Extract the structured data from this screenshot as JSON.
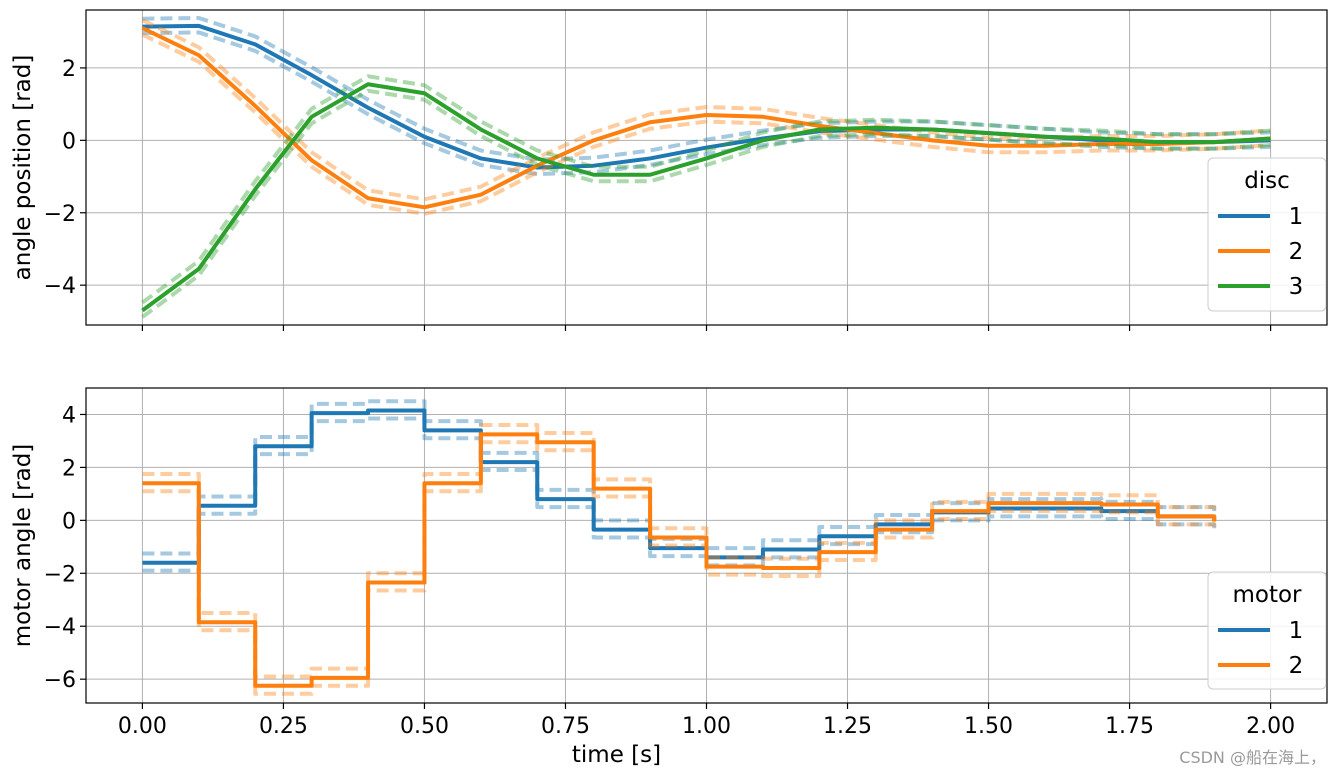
{
  "watermark": "CSDN @船在海上，",
  "colors": {
    "c1": "#1f77b4",
    "c2": "#ff7f0e",
    "c3": "#2ca02c",
    "grid": "#b0b0b0"
  },
  "chart_data": [
    {
      "type": "line",
      "ylabel": "angle position [rad]",
      "xlabel": "",
      "xlim": [
        -0.1,
        2.1
      ],
      "ylim": [
        -5.1,
        3.6
      ],
      "xticks": [
        0.0,
        0.25,
        0.5,
        0.75,
        1.0,
        1.25,
        1.5,
        1.75,
        2.0
      ],
      "xtick_labels_shown": false,
      "yticks": [
        -4,
        -2,
        0,
        2
      ],
      "ytick_labels": [
        "−4",
        "−2",
        "0",
        "2"
      ],
      "grid": true,
      "legend": {
        "title": "disc",
        "placement": "lower-right",
        "entries": [
          "1",
          "2",
          "3"
        ]
      },
      "x": [
        0.0,
        0.1,
        0.2,
        0.3,
        0.4,
        0.5,
        0.6,
        0.7,
        0.8,
        0.9,
        1.0,
        1.1,
        1.2,
        1.3,
        1.4,
        1.5,
        1.6,
        1.7,
        1.8,
        1.9,
        2.0
      ],
      "series": [
        {
          "name": "1",
          "color": "#1f77b4",
          "values": [
            3.14,
            3.16,
            2.65,
            1.8,
            0.9,
            0.1,
            -0.5,
            -0.75,
            -0.7,
            -0.5,
            -0.2,
            0.05,
            0.25,
            0.3,
            0.3,
            0.2,
            0.1,
            0.0,
            -0.05,
            -0.05,
            0.0
          ]
        },
        {
          "name": "2",
          "color": "#ff7f0e",
          "values": [
            3.1,
            2.35,
            0.95,
            -0.55,
            -1.6,
            -1.85,
            -1.5,
            -0.7,
            0.0,
            0.5,
            0.7,
            0.65,
            0.4,
            0.2,
            0.0,
            -0.15,
            -0.15,
            -0.1,
            -0.1,
            -0.05,
            0.05
          ]
        },
        {
          "name": "3",
          "color": "#2ca02c",
          "values": [
            -4.7,
            -3.55,
            -1.35,
            0.65,
            1.55,
            1.3,
            0.3,
            -0.5,
            -0.95,
            -0.95,
            -0.5,
            0.0,
            0.3,
            0.35,
            0.3,
            0.2,
            0.1,
            0.05,
            -0.05,
            -0.05,
            0.05
          ]
        }
      ]
    },
    {
      "type": "line",
      "step": true,
      "ylabel": "motor angle [rad]",
      "xlabel": "time [s]",
      "xlim": [
        -0.1,
        2.1
      ],
      "ylim": [
        -6.9,
        5.0
      ],
      "xticks": [
        0.0,
        0.25,
        0.5,
        0.75,
        1.0,
        1.25,
        1.5,
        1.75,
        2.0
      ],
      "xtick_labels": [
        "0.00",
        "0.25",
        "0.50",
        "0.75",
        "1.00",
        "1.25",
        "1.50",
        "1.75",
        "2.00"
      ],
      "yticks": [
        -6,
        -4,
        -2,
        0,
        2,
        4
      ],
      "ytick_labels": [
        "−6",
        "−4",
        "−2",
        "0",
        "2",
        "4"
      ],
      "grid": true,
      "legend": {
        "title": "motor",
        "placement": "lower-right",
        "entries": [
          "1",
          "2"
        ]
      },
      "x": [
        0.0,
        0.1,
        0.2,
        0.3,
        0.4,
        0.5,
        0.6,
        0.7,
        0.8,
        0.9,
        1.0,
        1.1,
        1.2,
        1.3,
        1.4,
        1.5,
        1.6,
        1.7,
        1.8,
        1.9
      ],
      "series": [
        {
          "name": "1",
          "color": "#1f77b4",
          "values": [
            -1.6,
            0.55,
            2.8,
            4.05,
            4.15,
            3.4,
            2.2,
            0.8,
            -0.35,
            -1.05,
            -1.4,
            -1.1,
            -0.6,
            -0.15,
            0.3,
            0.45,
            0.45,
            0.35,
            0.15,
            0.0
          ]
        },
        {
          "name": "2",
          "color": "#ff7f0e",
          "values": [
            1.4,
            -3.85,
            -6.25,
            -5.95,
            -2.35,
            1.4,
            3.25,
            2.95,
            1.2,
            -0.65,
            -1.75,
            -1.8,
            -1.2,
            -0.35,
            0.35,
            0.65,
            0.65,
            0.6,
            0.15,
            -0.05
          ]
        }
      ]
    }
  ]
}
